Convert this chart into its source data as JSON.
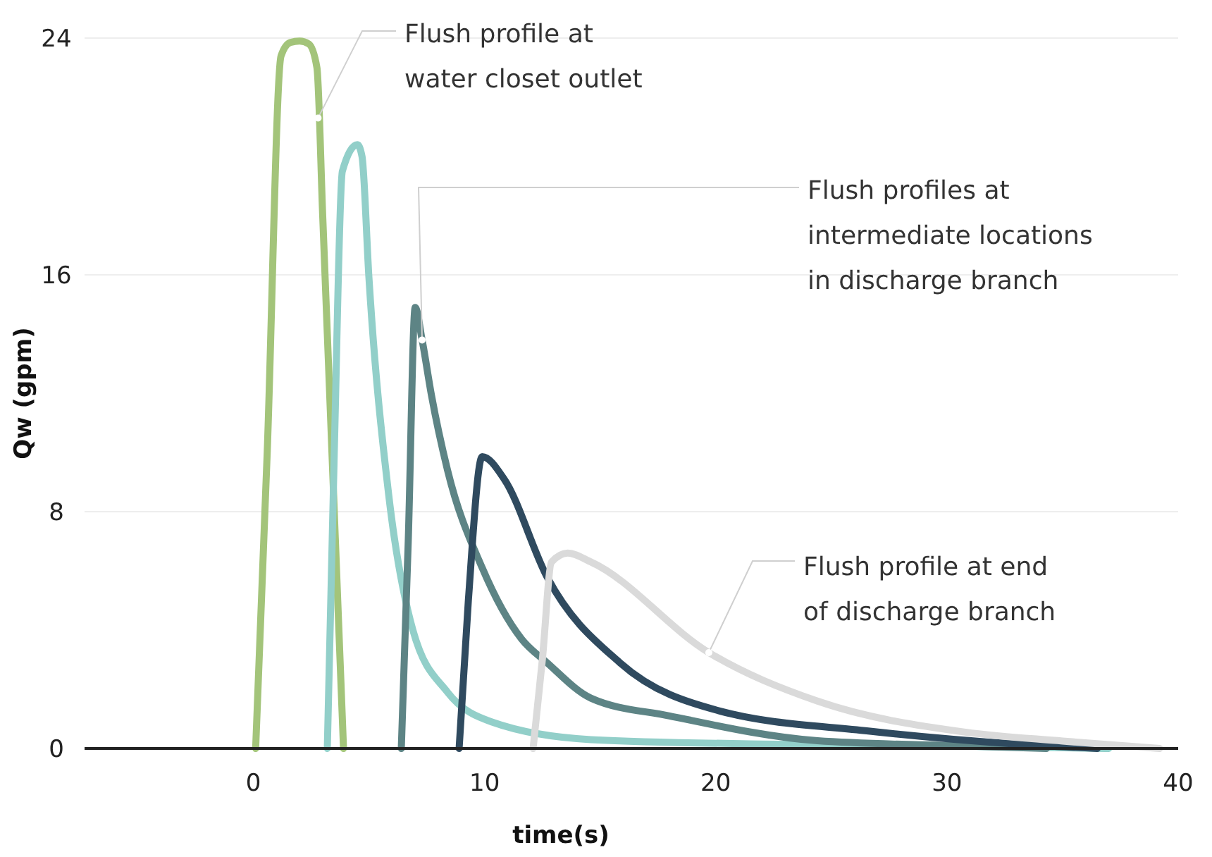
{
  "chart_data": {
    "type": "line",
    "xlabel": "time(s)",
    "ylabel": "Qw (gpm)",
    "xlim": [
      -7.3,
      40
    ],
    "xticks": [
      0,
      10,
      20,
      30,
      40
    ],
    "ylim": [
      0,
      24
    ],
    "yticks": [
      0,
      8,
      16,
      24
    ],
    "grid": "y",
    "series": [
      {
        "color": "#a3c47a",
        "x": [
          0.1,
          0.6,
          1.2,
          1.6,
          2.0,
          2.4,
          2.75,
          3.0,
          3.4,
          3.9
        ],
        "values": [
          0,
          10,
          23.4,
          23.85,
          23.9,
          23.8,
          23.0,
          18,
          10,
          0
        ]
      },
      {
        "color": "#92cfc9",
        "x": [
          3.2,
          3.5,
          3.85,
          4.5,
          4.7,
          5.0,
          5.85,
          6.9,
          8.4,
          10.3,
          14.6,
          22,
          28.2,
          37
        ],
        "values": [
          0,
          10,
          19.5,
          20.4,
          20,
          15.9,
          8.6,
          4.0,
          1.9,
          0.9,
          0.3,
          0.15,
          0.1,
          0
        ]
      },
      {
        "color": "#5d8485",
        "x": [
          6.4,
          6.7,
          7.0,
          7.3,
          7.7,
          8.4,
          9.9,
          11.6,
          12.7,
          14.6,
          18,
          24.4,
          30,
          34.3
        ],
        "values": [
          0,
          7,
          14.9,
          13.8,
          11.95,
          9.4,
          6.1,
          3.7,
          2.9,
          1.7,
          1.1,
          0.26,
          0.1,
          0
        ]
      },
      {
        "color": "#2f4a5f",
        "x": [
          8.9,
          9.3,
          9.9,
          10.85,
          12.7,
          15.85,
          20.2,
          26.6,
          33,
          36.5
        ],
        "values": [
          0,
          5,
          9.86,
          9.1,
          5.8,
          2.9,
          1.26,
          0.59,
          0.15,
          0
        ]
      },
      {
        "color": "#dadada",
        "x": [
          12.1,
          12.5,
          12.9,
          13.6,
          14.6,
          19.7,
          24.4,
          30.8,
          35,
          39.2
        ],
        "values": [
          0,
          3,
          6.3,
          6.6,
          6.3,
          3.24,
          1.6,
          0.55,
          0.25,
          0
        ]
      }
    ],
    "annotations": [
      {
        "text": "Flush profile at\nwater closet outlet",
        "x": 2.8,
        "y": 21.3
      },
      {
        "text": "Flush profiles at\nintermediate locations\nin discharge branch",
        "x": 7.3,
        "y": 13.8
      },
      {
        "text": "Flush profile at end\nof discharge branch",
        "x": 19.7,
        "y": 3.24
      }
    ]
  }
}
